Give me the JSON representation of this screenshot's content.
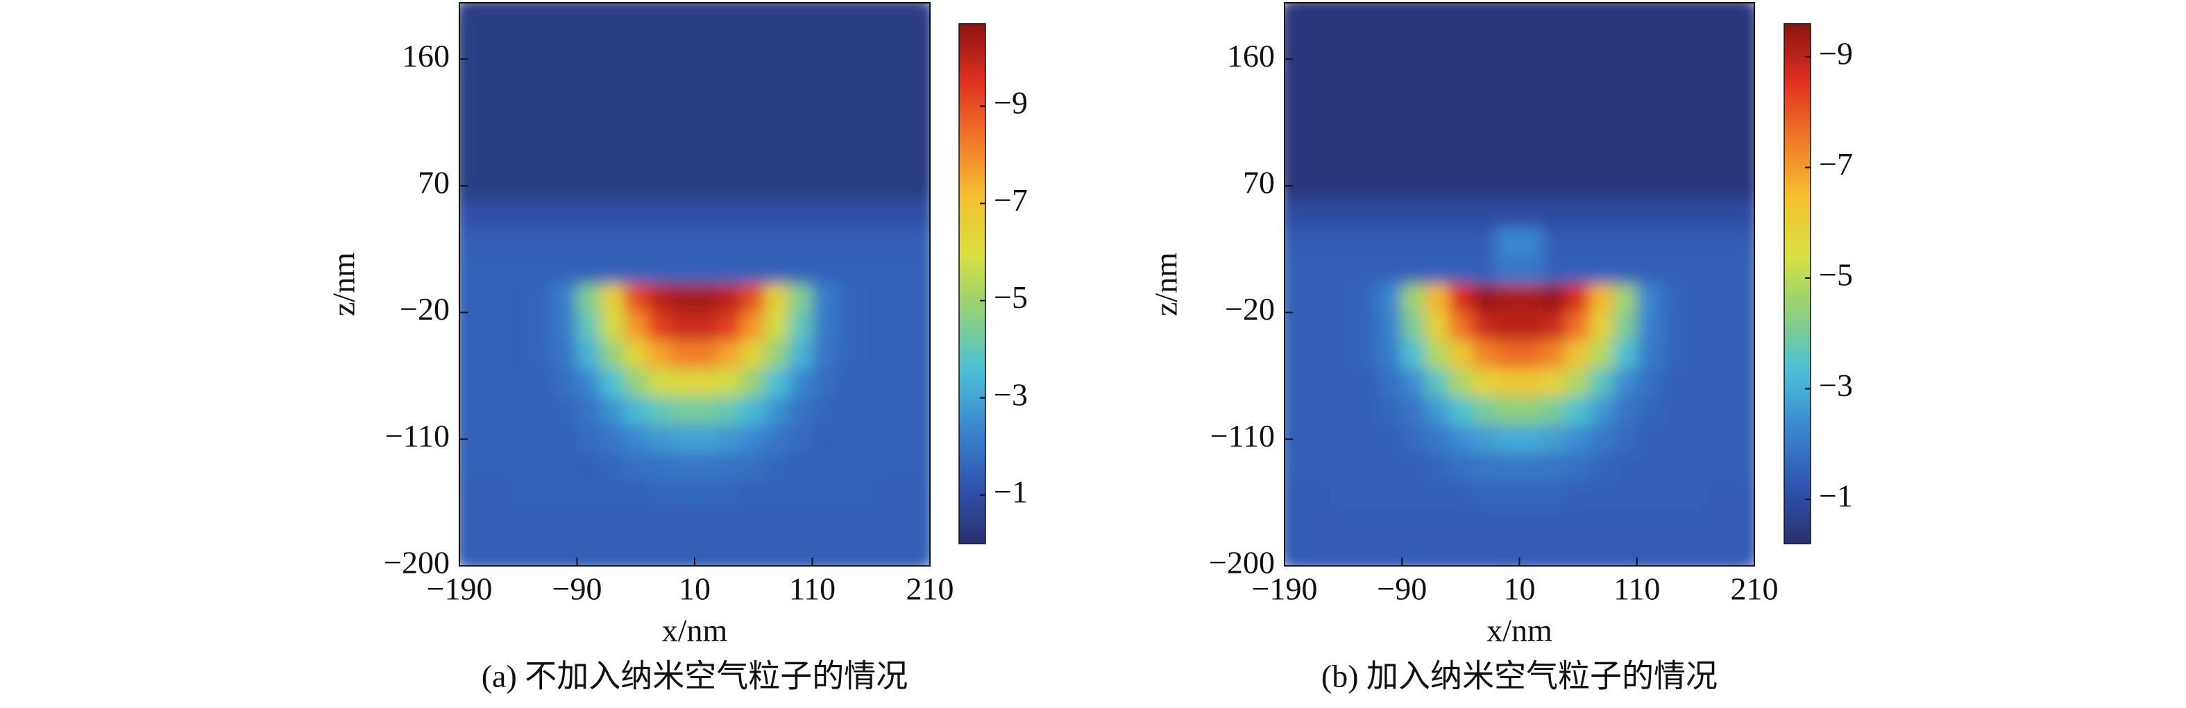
{
  "chart_data": [
    {
      "type": "heatmap",
      "caption": "(a) 不加入纳米空气粒子的情况",
      "xlabel": "x/nm",
      "ylabel": "z/nm",
      "xlim": [
        -190,
        210
      ],
      "ylim": [
        -200,
        200
      ],
      "xticks": [
        {
          "value": -190,
          "label": "−190"
        },
        {
          "value": -90,
          "label": "−90"
        },
        10,
        110,
        210
      ],
      "yticks": [
        160,
        70,
        {
          "value": -20,
          "label": "−20"
        },
        {
          "value": -110,
          "label": "−110"
        },
        {
          "value": -200,
          "label": "−200"
        }
      ],
      "clim": [
        0,
        -10.7
      ],
      "cticks": [
        {
          "value": -1,
          "label": "−1"
        },
        {
          "value": -3,
          "label": "−3"
        },
        {
          "value": -5,
          "label": "−5"
        },
        {
          "value": -7,
          "label": "−7"
        },
        {
          "value": -9,
          "label": "−9"
        }
      ],
      "colormap": [
        "#2a2f6e",
        "#2f55b0",
        "#3b86d0",
        "#4cc0d8",
        "#8fd07a",
        "#d8e040",
        "#f6c030",
        "#f07828",
        "#e03020",
        "#8a1410"
      ],
      "x": [
        -180,
        -160,
        -140,
        -120,
        -100,
        -80,
        -60,
        -40,
        -20,
        0,
        20,
        40,
        60,
        80,
        100,
        120,
        140,
        160,
        180,
        200
      ],
      "y": [
        190,
        170,
        150,
        130,
        110,
        90,
        70,
        50,
        30,
        10,
        -10,
        -30,
        -50,
        -70,
        -90,
        -110,
        -130,
        -150,
        -170,
        -190
      ],
      "values": [
        [
          -0.4,
          -0.4,
          -0.4,
          -0.4,
          -0.4,
          -0.4,
          -0.4,
          -0.4,
          -0.4,
          -0.4,
          -0.4,
          -0.4,
          -0.4,
          -0.4,
          -0.4,
          -0.4,
          -0.4,
          -0.4,
          -0.4,
          -0.4
        ],
        [
          -0.4,
          -0.4,
          -0.4,
          -0.4,
          -0.4,
          -0.4,
          -0.4,
          -0.4,
          -0.4,
          -0.4,
          -0.4,
          -0.4,
          -0.4,
          -0.4,
          -0.4,
          -0.4,
          -0.4,
          -0.4,
          -0.4,
          -0.4
        ],
        [
          -0.4,
          -0.4,
          -0.4,
          -0.4,
          -0.4,
          -0.4,
          -0.4,
          -0.4,
          -0.4,
          -0.4,
          -0.4,
          -0.4,
          -0.4,
          -0.4,
          -0.4,
          -0.4,
          -0.4,
          -0.4,
          -0.4,
          -0.4
        ],
        [
          -0.4,
          -0.4,
          -0.4,
          -0.4,
          -0.4,
          -0.4,
          -0.4,
          -0.4,
          -0.4,
          -0.4,
          -0.4,
          -0.4,
          -0.4,
          -0.4,
          -0.4,
          -0.4,
          -0.4,
          -0.4,
          -0.4,
          -0.4
        ],
        [
          -0.4,
          -0.4,
          -0.4,
          -0.4,
          -0.4,
          -0.4,
          -0.4,
          -0.4,
          -0.4,
          -0.4,
          -0.4,
          -0.4,
          -0.4,
          -0.4,
          -0.4,
          -0.4,
          -0.4,
          -0.4,
          -0.4,
          -0.4
        ],
        [
          -0.4,
          -0.4,
          -0.4,
          -0.4,
          -0.4,
          -0.4,
          -0.4,
          -0.4,
          -0.4,
          -0.4,
          -0.4,
          -0.4,
          -0.4,
          -0.4,
          -0.4,
          -0.4,
          -0.4,
          -0.4,
          -0.4,
          -0.4
        ],
        [
          -0.4,
          -0.4,
          -0.4,
          -0.4,
          -0.4,
          -0.4,
          -0.4,
          -0.4,
          -0.4,
          -0.4,
          -0.4,
          -0.4,
          -0.4,
          -0.4,
          -0.4,
          -0.4,
          -0.4,
          -0.4,
          -0.4,
          -0.4
        ],
        [
          -1.0,
          -1.0,
          -1.0,
          -1.0,
          -1.0,
          -1.0,
          -1.0,
          -1.0,
          -1.0,
          -1.0,
          -1.0,
          -1.0,
          -1.0,
          -1.0,
          -1.0,
          -1.0,
          -1.0,
          -1.0,
          -1.0,
          -1.0
        ],
        [
          -1.4,
          -1.4,
          -1.4,
          -1.4,
          -1.4,
          -1.4,
          -1.4,
          -1.4,
          -1.4,
          -1.4,
          -1.4,
          -1.4,
          -1.4,
          -1.4,
          -1.4,
          -1.4,
          -1.4,
          -1.4,
          -1.4,
          -1.4
        ],
        [
          -1.5,
          -1.5,
          -1.5,
          -1.5,
          -1.5,
          -1.5,
          -1.5,
          -1.5,
          -1.5,
          -1.5,
          -1.5,
          -1.5,
          -1.5,
          -1.5,
          -1.5,
          -1.5,
          -1.5,
          -1.5,
          -1.5,
          -1.5
        ],
        [
          -1.5,
          -1.5,
          -1.5,
          -1.6,
          -2.2,
          -4.5,
          -6.5,
          -9,
          -10,
          -10.3,
          -10.3,
          -10,
          -9,
          -6.5,
          -4.5,
          -2.2,
          -1.6,
          -1.5,
          -1.5,
          -1.5
        ],
        [
          -1.5,
          -1.5,
          -1.5,
          -1.6,
          -2.1,
          -4,
          -5.8,
          -7.8,
          -9.3,
          -9.8,
          -9.8,
          -9.3,
          -7.8,
          -5.8,
          -4,
          -2.1,
          -1.6,
          -1.5,
          -1.5,
          -1.5
        ],
        [
          -1.5,
          -1.5,
          -1.5,
          -1.6,
          -2,
          -3.3,
          -4.8,
          -6.3,
          -7.6,
          -8.2,
          -8.2,
          -7.6,
          -6.3,
          -4.8,
          -3.3,
          -2,
          -1.6,
          -1.5,
          -1.5,
          -1.5
        ],
        [
          -1.5,
          -1.5,
          -1.5,
          -1.5,
          -1.8,
          -2.4,
          -3.6,
          -4.8,
          -5.8,
          -6.2,
          -6.2,
          -5.8,
          -4.8,
          -3.6,
          -2.4,
          -1.8,
          -1.5,
          -1.5,
          -1.5,
          -1.5
        ],
        [
          -1.5,
          -1.5,
          -1.5,
          -1.5,
          -1.6,
          -1.9,
          -2.6,
          -3.4,
          -4,
          -4.3,
          -4.3,
          -4,
          -3.4,
          -2.6,
          -1.9,
          -1.6,
          -1.5,
          -1.5,
          -1.5,
          -1.5
        ],
        [
          -1.5,
          -1.5,
          -1.5,
          -1.5,
          -1.5,
          -1.7,
          -2,
          -2.4,
          -2.7,
          -2.9,
          -2.9,
          -2.7,
          -2.4,
          -2,
          -1.7,
          -1.5,
          -1.5,
          -1.5,
          -1.5,
          -1.5
        ],
        [
          -1.5,
          -1.5,
          -1.5,
          -1.5,
          -1.5,
          -1.5,
          -1.6,
          -1.8,
          -1.9,
          -2,
          -2,
          -1.9,
          -1.8,
          -1.6,
          -1.5,
          -1.5,
          -1.5,
          -1.5,
          -1.5,
          -1.5
        ],
        [
          -1.4,
          -1.4,
          -1.5,
          -1.5,
          -1.5,
          -1.5,
          -1.5,
          -1.5,
          -1.6,
          -1.6,
          -1.6,
          -1.6,
          -1.5,
          -1.5,
          -1.5,
          -1.5,
          -1.5,
          -1.5,
          -1.4,
          -1.4
        ],
        [
          -1.4,
          -1.4,
          -1.4,
          -1.4,
          -1.4,
          -1.4,
          -1.4,
          -1.4,
          -1.4,
          -1.4,
          -1.4,
          -1.4,
          -1.4,
          -1.4,
          -1.4,
          -1.4,
          -1.4,
          -1.4,
          -1.4,
          -1.4
        ],
        [
          -1.4,
          -1.4,
          -1.4,
          -1.4,
          -1.4,
          -1.4,
          -1.4,
          -1.4,
          -1.4,
          -1.4,
          -1.4,
          -1.4,
          -1.4,
          -1.4,
          -1.4,
          -1.4,
          -1.4,
          -1.4,
          -1.4,
          -1.4
        ]
      ]
    },
    {
      "type": "heatmap",
      "caption": "(b) 加入纳米空气粒子的情况",
      "xlabel": "x/nm",
      "ylabel": "z/nm",
      "xlim": [
        -190,
        210
      ],
      "ylim": [
        -200,
        200
      ],
      "xticks": [
        {
          "value": -190,
          "label": "−190"
        },
        {
          "value": -90,
          "label": "−90"
        },
        10,
        110,
        210
      ],
      "yticks": [
        160,
        70,
        {
          "value": -20,
          "label": "−20"
        },
        {
          "value": -110,
          "label": "−110"
        },
        {
          "value": -200,
          "label": "−200"
        }
      ],
      "clim": [
        -0.2,
        -9.6
      ],
      "cticks": [
        {
          "value": -1,
          "label": "−1"
        },
        {
          "value": -3,
          "label": "−3"
        },
        {
          "value": -5,
          "label": "−5"
        },
        {
          "value": -7,
          "label": "−7"
        },
        {
          "value": -9,
          "label": "−9"
        }
      ],
      "colormap": [
        "#2a2f6e",
        "#2f55b0",
        "#3b86d0",
        "#4cc0d8",
        "#8fd07a",
        "#d8e040",
        "#f6c030",
        "#f07828",
        "#e03020",
        "#8a1410"
      ],
      "x": [
        -180,
        -160,
        -140,
        -120,
        -100,
        -80,
        -60,
        -40,
        -20,
        0,
        20,
        40,
        60,
        80,
        100,
        120,
        140,
        160,
        180,
        200
      ],
      "y": [
        190,
        170,
        150,
        130,
        110,
        90,
        70,
        50,
        30,
        10,
        -10,
        -30,
        -50,
        -70,
        -90,
        -110,
        -130,
        -150,
        -170,
        -190
      ],
      "values": [
        [
          -0.4,
          -0.4,
          -0.4,
          -0.4,
          -0.4,
          -0.4,
          -0.4,
          -0.4,
          -0.4,
          -0.4,
          -0.4,
          -0.4,
          -0.4,
          -0.4,
          -0.4,
          -0.4,
          -0.4,
          -0.4,
          -0.4,
          -0.4
        ],
        [
          -0.4,
          -0.4,
          -0.4,
          -0.4,
          -0.4,
          -0.4,
          -0.4,
          -0.4,
          -0.4,
          -0.4,
          -0.4,
          -0.4,
          -0.4,
          -0.4,
          -0.4,
          -0.4,
          -0.4,
          -0.4,
          -0.4,
          -0.4
        ],
        [
          -0.4,
          -0.4,
          -0.4,
          -0.4,
          -0.4,
          -0.4,
          -0.4,
          -0.4,
          -0.4,
          -0.4,
          -0.4,
          -0.4,
          -0.4,
          -0.4,
          -0.4,
          -0.4,
          -0.4,
          -0.4,
          -0.4,
          -0.4
        ],
        [
          -0.4,
          -0.4,
          -0.4,
          -0.4,
          -0.4,
          -0.4,
          -0.4,
          -0.4,
          -0.4,
          -0.4,
          -0.4,
          -0.4,
          -0.4,
          -0.4,
          -0.4,
          -0.4,
          -0.4,
          -0.4,
          -0.4,
          -0.4
        ],
        [
          -0.4,
          -0.4,
          -0.4,
          -0.4,
          -0.4,
          -0.4,
          -0.4,
          -0.4,
          -0.4,
          -0.4,
          -0.4,
          -0.4,
          -0.4,
          -0.4,
          -0.4,
          -0.4,
          -0.4,
          -0.4,
          -0.4,
          -0.4
        ],
        [
          -0.4,
          -0.4,
          -0.4,
          -0.4,
          -0.4,
          -0.4,
          -0.4,
          -0.4,
          -0.4,
          -0.4,
          -0.4,
          -0.4,
          -0.4,
          -0.4,
          -0.4,
          -0.4,
          -0.4,
          -0.4,
          -0.4,
          -0.4
        ],
        [
          -0.4,
          -0.4,
          -0.4,
          -0.4,
          -0.4,
          -0.4,
          -0.4,
          -0.4,
          -0.4,
          -0.4,
          -0.4,
          -0.4,
          -0.4,
          -0.4,
          -0.4,
          -0.4,
          -0.4,
          -0.4,
          -0.4,
          -0.4
        ],
        [
          -1.0,
          -1.0,
          -1.0,
          -1.0,
          -1.0,
          -1.0,
          -1.0,
          -1.0,
          -1.0,
          -1.0,
          -1.0,
          -1.0,
          -1.0,
          -1.0,
          -1.0,
          -1.0,
          -1.0,
          -1.0,
          -1.0,
          -1.0
        ],
        [
          -1.4,
          -1.4,
          -1.4,
          -1.4,
          -1.4,
          -1.4,
          -1.4,
          -1.4,
          -1.4,
          -2.3,
          -2.3,
          -1.4,
          -1.4,
          -1.4,
          -1.4,
          -1.4,
          -1.4,
          -1.4,
          -1.4,
          -1.4
        ],
        [
          -1.5,
          -1.5,
          -1.5,
          -1.5,
          -1.5,
          -1.5,
          -1.5,
          -1.5,
          -1.5,
          -2.0,
          -2.0,
          -1.5,
          -1.5,
          -1.5,
          -1.5,
          -1.5,
          -1.5,
          -1.5,
          -1.5,
          -1.5
        ],
        [
          -1.5,
          -1.5,
          -1.5,
          -1.6,
          -2.3,
          -4.6,
          -6.6,
          -8.6,
          -9.4,
          -9.2,
          -9.2,
          -9.4,
          -8.6,
          -6.6,
          -4.6,
          -2.3,
          -1.6,
          -1.5,
          -1.5,
          -1.5
        ],
        [
          -1.5,
          -1.5,
          -1.5,
          -1.6,
          -2.2,
          -4.1,
          -5.9,
          -7.6,
          -8.8,
          -9.0,
          -9.0,
          -8.8,
          -7.6,
          -5.9,
          -4.1,
          -2.2,
          -1.6,
          -1.5,
          -1.5,
          -1.5
        ],
        [
          -1.5,
          -1.5,
          -1.5,
          -1.6,
          -2.1,
          -3.4,
          -4.9,
          -6.2,
          -7.3,
          -7.7,
          -7.7,
          -7.3,
          -6.2,
          -4.9,
          -3.4,
          -2.1,
          -1.6,
          -1.5,
          -1.5,
          -1.5
        ],
        [
          -1.5,
          -1.5,
          -1.5,
          -1.5,
          -1.8,
          -2.4,
          -3.6,
          -4.8,
          -5.8,
          -6.2,
          -6.2,
          -5.8,
          -4.8,
          -3.6,
          -2.4,
          -1.8,
          -1.5,
          -1.5,
          -1.5,
          -1.5
        ],
        [
          -1.5,
          -1.5,
          -1.5,
          -1.5,
          -1.6,
          -1.9,
          -2.6,
          -3.4,
          -4,
          -4.3,
          -4.3,
          -4,
          -3.4,
          -2.6,
          -1.9,
          -1.6,
          -1.5,
          -1.5,
          -1.5,
          -1.5
        ],
        [
          -1.5,
          -1.5,
          -1.5,
          -1.5,
          -1.5,
          -1.7,
          -2,
          -2.4,
          -2.7,
          -2.9,
          -2.9,
          -2.7,
          -2.4,
          -2,
          -1.7,
          -1.5,
          -1.5,
          -1.5,
          -1.5,
          -1.5
        ],
        [
          -1.5,
          -1.5,
          -1.5,
          -1.5,
          -1.5,
          -1.5,
          -1.6,
          -1.8,
          -1.9,
          -2,
          -2,
          -1.9,
          -1.8,
          -1.6,
          -1.5,
          -1.5,
          -1.5,
          -1.5,
          -1.5,
          -1.5
        ],
        [
          -1.4,
          -1.4,
          -1.5,
          -1.5,
          -1.5,
          -1.5,
          -1.5,
          -1.5,
          -1.6,
          -1.6,
          -1.6,
          -1.6,
          -1.5,
          -1.5,
          -1.5,
          -1.5,
          -1.5,
          -1.5,
          -1.4,
          -1.4
        ],
        [
          -1.4,
          -1.4,
          -1.4,
          -1.4,
          -1.4,
          -1.4,
          -1.4,
          -1.4,
          -1.4,
          -1.4,
          -1.4,
          -1.4,
          -1.4,
          -1.4,
          -1.4,
          -1.4,
          -1.4,
          -1.4,
          -1.4,
          -1.4
        ],
        [
          -1.4,
          -1.4,
          -1.4,
          -1.4,
          -1.4,
          -1.4,
          -1.4,
          -1.4,
          -1.4,
          -1.4,
          -1.4,
          -1.4,
          -1.4,
          -1.4,
          -1.4,
          -1.4,
          -1.4,
          -1.4,
          -1.4,
          -1.4
        ]
      ]
    }
  ]
}
